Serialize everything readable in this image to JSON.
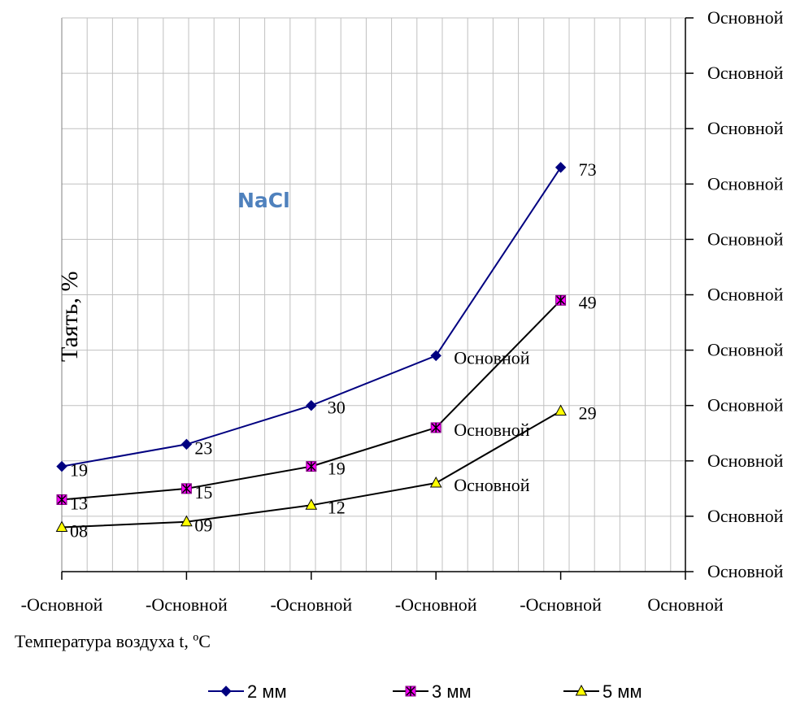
{
  "chart_data": {
    "type": "line",
    "title": "NaCl",
    "xlabel": "Температура воздуха t, ºC",
    "ylabel": "Таять, %",
    "x_tick_labels": [
      "-Основной",
      "-Основной",
      "-Основной",
      "-Основной",
      "-Основной",
      "Основной"
    ],
    "y_tick_labels": [
      "Основной",
      "Основной",
      "Основной",
      "Основной",
      "Основной",
      "Основной",
      "Основной",
      "Основной",
      "Основной",
      "Основной",
      "Основной"
    ],
    "ylim": [
      0,
      100
    ],
    "grid": true,
    "legend_position": "bottom",
    "series": [
      {
        "name": "2 мм",
        "color": "#000080",
        "marker": "diamond",
        "values": [
          19,
          23,
          30,
          39,
          73
        ],
        "labels": [
          "19",
          "23",
          "30",
          "Основной",
          "73"
        ]
      },
      {
        "name": "3 мм",
        "color": "#000000",
        "marker_fill": "#ff00ff",
        "marker": "square-x",
        "values": [
          13,
          15,
          19,
          26,
          49
        ],
        "labels": [
          "13",
          "15",
          "19",
          "Основной",
          "49"
        ]
      },
      {
        "name": "5 мм",
        "color": "#000000",
        "marker_fill": "#ffff00",
        "marker": "triangle",
        "values": [
          8,
          9,
          12,
          16,
          29
        ],
        "labels": [
          "08",
          "09",
          "12",
          "Основной",
          "29"
        ]
      }
    ]
  }
}
